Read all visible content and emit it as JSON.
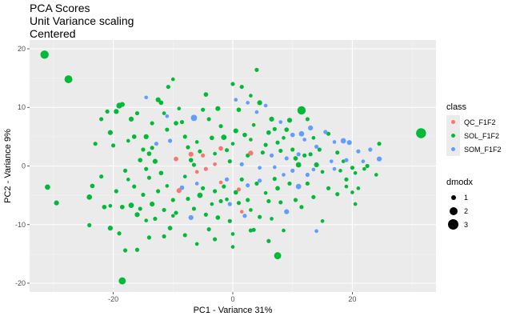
{
  "header": {
    "title": "PCA Scores",
    "subtitle1": "Unit Variance scaling",
    "subtitle2": "Centered"
  },
  "chart_data": {
    "type": "scatter",
    "title": "PCA Scores",
    "subtitle": "Unit Variance scaling\nCentered",
    "xlabel": "PC1 - Variance 31%",
    "ylabel": "PC2 - Variance 9%",
    "xlim": [
      -34,
      34
    ],
    "ylim": [
      -21.5,
      21.5
    ],
    "x_ticks": [
      -20,
      0,
      20
    ],
    "y_ticks": [
      -20,
      -10,
      0,
      10,
      20
    ],
    "x_tick_labels": [
      "-20",
      "0",
      "20"
    ],
    "y_tick_labels": [
      "-20",
      "-10",
      "0",
      "10",
      "20"
    ],
    "grid": true,
    "background": "#ebebeb",
    "legend_placement": "right",
    "legend_color": {
      "title": "class",
      "entries": [
        {
          "name": "QC_F1F2",
          "color": "#f8766d"
        },
        {
          "name": "SOL_F1F2",
          "color": "#00ba38"
        },
        {
          "name": "SOM_F1F2",
          "color": "#619cff"
        }
      ]
    },
    "legend_size": {
      "title": "dmodx",
      "entries": [
        {
          "label": "1",
          "value": 1
        },
        {
          "label": "2",
          "value": 2
        },
        {
          "label": "3",
          "value": 3
        }
      ]
    },
    "series": [
      {
        "name": "QC_F1F2",
        "color": "#f8766d",
        "points": [
          [
            -7.0,
            2.0,
            1.5
          ],
          [
            -9.5,
            1.2,
            1.4
          ],
          [
            -5.0,
            1.8,
            1.3
          ],
          [
            -2.0,
            3.0,
            1.4
          ],
          [
            3.0,
            2.2,
            1.5
          ],
          [
            1.0,
            -4.0,
            1.3
          ],
          [
            -6.0,
            -1.0,
            1.2
          ],
          [
            -4.5,
            -0.5,
            1.3
          ],
          [
            -3.0,
            0.3,
            1.2
          ],
          [
            -9.0,
            -4.2,
            1.5
          ],
          [
            -2.0,
            -2.8,
            1.2
          ],
          [
            1.5,
            -7.8,
            1.2
          ]
        ]
      },
      {
        "name": "SOM_F1F2",
        "color": "#619cff",
        "points": [
          [
            -14.5,
            11.7,
            1.2
          ],
          [
            -11,
            8.5,
            1.2
          ],
          [
            -10.5,
            4.3,
            1.3
          ],
          [
            -6.5,
            8.2,
            1.8
          ],
          [
            -12.8,
            3.8,
            1.3
          ],
          [
            0.5,
            11.3,
            1.2
          ],
          [
            2.5,
            10.8,
            1.2
          ],
          [
            4.0,
            9.2,
            1.2
          ],
          [
            5.5,
            10.3,
            1.2
          ],
          [
            8.0,
            7.5,
            1.2
          ],
          [
            10.0,
            5.3,
            1.4
          ],
          [
            11.5,
            5.5,
            1.6
          ],
          [
            13.0,
            6.5,
            1.5
          ],
          [
            15.5,
            5.8,
            1.3
          ],
          [
            17.0,
            4.1,
            1.2
          ],
          [
            18.5,
            4.3,
            1.6
          ],
          [
            21.0,
            2.5,
            1.3
          ],
          [
            23.0,
            2.8,
            1.3
          ],
          [
            24.5,
            1.2,
            1.5
          ],
          [
            12.0,
            4.5,
            1.2
          ],
          [
            14.0,
            3.3,
            1.3
          ],
          [
            19.0,
            1.0,
            1.3
          ],
          [
            11.0,
            2.0,
            1.3
          ],
          [
            6.5,
            1.8,
            1.3
          ],
          [
            9.0,
            1.3,
            1.3
          ],
          [
            16.5,
            0.8,
            1.2
          ],
          [
            21.8,
            0.8,
            1.2
          ],
          [
            1.5,
            0.3,
            1.3
          ],
          [
            4.5,
            -0.3,
            1.2
          ],
          [
            7.0,
            -0.2,
            1.2
          ],
          [
            10.0,
            -0.8,
            1.3
          ],
          [
            13.5,
            -0.6,
            1.2
          ],
          [
            17.0,
            -0.5,
            1.2
          ],
          [
            8.5,
            -1.5,
            1.2
          ],
          [
            12.5,
            -1.5,
            1.3
          ],
          [
            4.5,
            -2.5,
            1.3
          ],
          [
            11.0,
            -3.5,
            1.6
          ],
          [
            -8.5,
            -3.7,
            1.4
          ],
          [
            -6.0,
            -3.0,
            1.2
          ],
          [
            -1.0,
            -2.3,
            1.3
          ],
          [
            2.5,
            -3.3,
            1.3
          ],
          [
            -0.5,
            -6.5,
            1.3
          ],
          [
            -7.0,
            -8.8,
            1.5
          ],
          [
            2.0,
            -8.5,
            1.3
          ],
          [
            9.0,
            -7.8,
            1.5
          ],
          [
            14.0,
            -11.1,
            1.2
          ],
          [
            19.5,
            4.0,
            1.5
          ]
        ]
      },
      {
        "name": "SOL_F1F2",
        "color": "#00ba38",
        "points": [
          [
            -31.5,
            19.0,
            2.3
          ],
          [
            -27.5,
            14.8,
            2.2
          ],
          [
            -31.0,
            -3.6,
            1.6
          ],
          [
            -29.5,
            -6.3,
            1.5
          ],
          [
            31.5,
            5.6,
            2.7
          ],
          [
            11.5,
            9.5,
            2.3
          ],
          [
            -18.5,
            -19.6,
            2.0
          ],
          [
            7.5,
            -15.3,
            2.0
          ],
          [
            -24.0,
            -5.3,
            1.6
          ],
          [
            -23.5,
            -3.4,
            1.4
          ],
          [
            -23.0,
            3.8,
            1.3
          ],
          [
            -20.5,
            5.7,
            1.5
          ],
          [
            -20.0,
            3.5,
            1.3
          ],
          [
            -19.5,
            9.3,
            1.5
          ],
          [
            -19.0,
            10.3,
            1.7
          ],
          [
            -18.5,
            10.5,
            1.5
          ],
          [
            -17.0,
            8.0,
            1.5
          ],
          [
            -16.5,
            5.0,
            1.4
          ],
          [
            -16.0,
            9.0,
            1.3
          ],
          [
            -15.5,
            1.0,
            1.4
          ],
          [
            -15.0,
            2.8,
            1.3
          ],
          [
            -14.5,
            -0.5,
            1.3
          ],
          [
            -14.0,
            2.1,
            1.4
          ],
          [
            -13.5,
            3.1,
            1.3
          ],
          [
            -13.0,
            0.8,
            1.5
          ],
          [
            -12.5,
            11.3,
            1.5
          ],
          [
            -12.0,
            10.8,
            1.4
          ],
          [
            -11.5,
            9.0,
            1.2
          ],
          [
            -10.8,
            13.5,
            1.3
          ],
          [
            -10.0,
            14.8,
            1.2
          ],
          [
            -9.5,
            7.3,
            1.4
          ],
          [
            -9.0,
            9.8,
            1.2
          ],
          [
            -8.5,
            7.5,
            1.3
          ],
          [
            -8.0,
            5.0,
            1.3
          ],
          [
            -7.5,
            3.2,
            1.3
          ],
          [
            -7.0,
            1.0,
            1.4
          ],
          [
            -6.5,
            0.2,
            1.3
          ],
          [
            -6.0,
            4.1,
            1.2
          ],
          [
            -5.5,
            2.5,
            1.3
          ],
          [
            -5.0,
            9.6,
            1.3
          ],
          [
            -4.5,
            12.2,
            1.4
          ],
          [
            -4.0,
            8.0,
            1.3
          ],
          [
            -3.5,
            4.8,
            1.4
          ],
          [
            -3.0,
            2.1,
            1.2
          ],
          [
            -2.5,
            9.8,
            1.5
          ],
          [
            -2.0,
            6.8,
            1.3
          ],
          [
            -1.5,
            4.9,
            1.6
          ],
          [
            -1.0,
            2.7,
            1.3
          ],
          [
            -0.5,
            0.8,
            1.3
          ],
          [
            0.0,
            3.8,
            1.2
          ],
          [
            0.5,
            6.0,
            1.5
          ],
          [
            1.0,
            9.6,
            1.4
          ],
          [
            1.5,
            13.5,
            1.3
          ],
          [
            2.0,
            5.3,
            1.4
          ],
          [
            2.5,
            1.8,
            1.3
          ],
          [
            3.0,
            4.5,
            1.2
          ],
          [
            3.5,
            7.0,
            1.2
          ],
          [
            4.0,
            16.4,
            1.3
          ],
          [
            4.5,
            10.8,
            1.5
          ],
          [
            5.0,
            2.3,
            1.3
          ],
          [
            5.5,
            3.6,
            1.3
          ],
          [
            6.0,
            5.7,
            1.4
          ],
          [
            6.5,
            8.0,
            1.5
          ],
          [
            7.0,
            6.3,
            1.3
          ],
          [
            7.5,
            4.0,
            1.3
          ],
          [
            8.0,
            2.6,
            1.3
          ],
          [
            8.5,
            4.8,
            1.2
          ],
          [
            9.0,
            6.2,
            1.4
          ],
          [
            9.5,
            7.8,
            1.5
          ],
          [
            10.0,
            2.8,
            1.3
          ],
          [
            10.5,
            1.3,
            1.4
          ],
          [
            11.0,
            0.2,
            1.6
          ],
          [
            12.0,
            1.8,
            1.3
          ],
          [
            12.5,
            8.0,
            1.3
          ],
          [
            13.0,
            2.0,
            1.3
          ],
          [
            13.5,
            4.8,
            1.2
          ],
          [
            14.0,
            0.2,
            1.5
          ],
          [
            14.5,
            2.8,
            1.3
          ],
          [
            15.0,
            -1.0,
            1.2
          ],
          [
            16.0,
            5.5,
            1.3
          ],
          [
            17.5,
            2.3,
            1.3
          ],
          [
            18.0,
            -0.8,
            1.2
          ],
          [
            18.5,
            0.8,
            1.2
          ],
          [
            19.0,
            -2.3,
            1.3
          ],
          [
            20.0,
            -0.3,
            1.3
          ],
          [
            20.5,
            -1.2,
            1.2
          ],
          [
            21.0,
            -3.8,
            1.2
          ],
          [
            22.0,
            -0.5,
            1.2
          ],
          [
            22.5,
            0.0,
            1.3
          ],
          [
            24.0,
            -1.5,
            1.2
          ],
          [
            24.5,
            3.8,
            1.3
          ],
          [
            -22.0,
            -1.8,
            1.3
          ],
          [
            -21.5,
            -7.0,
            1.4
          ],
          [
            -20.5,
            -6.8,
            1.2
          ],
          [
            -19.5,
            -4.3,
            1.3
          ],
          [
            -18.5,
            -7.0,
            1.4
          ],
          [
            -18.0,
            -0.8,
            1.3
          ],
          [
            -17.5,
            -2.3,
            1.2
          ],
          [
            -17.0,
            -6.7,
            1.6
          ],
          [
            -16.5,
            -3.5,
            1.3
          ],
          [
            -16.0,
            -8.3,
            1.5
          ],
          [
            -15.5,
            -7.3,
            1.3
          ],
          [
            -15.0,
            -4.9,
            1.3
          ],
          [
            -14.5,
            -9.3,
            1.2
          ],
          [
            -14.0,
            -2.0,
            1.3
          ],
          [
            -13.5,
            -6.5,
            1.5
          ],
          [
            -13.0,
            -9.0,
            1.3
          ],
          [
            -12.5,
            -4.3,
            1.3
          ],
          [
            -12.0,
            -1.2,
            1.4
          ],
          [
            -11.5,
            -7.5,
            1.3
          ],
          [
            -11.0,
            -3.4,
            1.2
          ],
          [
            -10.5,
            -10.6,
            1.4
          ],
          [
            -10.0,
            -5.8,
            1.3
          ],
          [
            -9.5,
            -8.0,
            1.3
          ],
          [
            -8.0,
            -1.8,
            1.2
          ],
          [
            -7.5,
            -5.6,
            1.3
          ],
          [
            -6.5,
            -7.3,
            1.3
          ],
          [
            -5.5,
            -5.0,
            1.6
          ],
          [
            -5.0,
            -3.8,
            1.3
          ],
          [
            -4.5,
            -8.3,
            1.3
          ],
          [
            -4.0,
            -10.8,
            1.3
          ],
          [
            -3.5,
            -6.5,
            1.2
          ],
          [
            -3.0,
            -4.3,
            1.3
          ],
          [
            -2.5,
            -8.8,
            1.4
          ],
          [
            -2.0,
            -6.0,
            1.3
          ],
          [
            -1.5,
            -3.5,
            1.3
          ],
          [
            -1.0,
            -5.7,
            1.2
          ],
          [
            -0.5,
            -9.4,
            1.3
          ],
          [
            0.0,
            -11.6,
            1.2
          ],
          [
            0.5,
            -4.5,
            1.4
          ],
          [
            1.0,
            -6.3,
            1.3
          ],
          [
            1.5,
            -2.3,
            1.3
          ],
          [
            2.5,
            -5.8,
            1.3
          ],
          [
            3.0,
            -7.5,
            1.2
          ],
          [
            3.5,
            -10.9,
            1.3
          ],
          [
            4.0,
            -3.0,
            1.3
          ],
          [
            4.5,
            -8.7,
            1.3
          ],
          [
            5.5,
            -4.6,
            1.2
          ],
          [
            6.0,
            -6.0,
            1.3
          ],
          [
            6.5,
            -9.0,
            1.2
          ],
          [
            7.0,
            -2.2,
            1.3
          ],
          [
            7.5,
            -3.8,
            1.4
          ],
          [
            8.0,
            -6.2,
            1.3
          ],
          [
            8.5,
            -11.0,
            1.2
          ],
          [
            9.5,
            -3.0,
            1.3
          ],
          [
            10.5,
            -5.8,
            1.3
          ],
          [
            11.5,
            -7.0,
            1.3
          ],
          [
            12.5,
            -3.0,
            1.3
          ],
          [
            13.5,
            -5.3,
            1.3
          ],
          [
            15.0,
            -9.4,
            1.2
          ],
          [
            16.0,
            -3.8,
            1.3
          ],
          [
            17.5,
            -4.8,
            1.3
          ],
          [
            19.0,
            -3.5,
            1.2
          ],
          [
            20.0,
            -4.5,
            1.2
          ],
          [
            20.5,
            -6.5,
            1.2
          ],
          [
            -24.0,
            -10.1,
            1.3
          ],
          [
            -20.5,
            -10.6,
            1.5
          ],
          [
            -19.0,
            -11.5,
            1.3
          ],
          [
            -18.0,
            -14.4,
            1.3
          ],
          [
            -16.0,
            -14.3,
            1.3
          ],
          [
            -14.0,
            -12.2,
            1.3
          ],
          [
            -11.5,
            -12.0,
            1.3
          ],
          [
            -10.0,
            -8.5,
            1.2
          ],
          [
            -8.0,
            -11.8,
            1.3
          ],
          [
            -6.0,
            -13.3,
            1.2
          ],
          [
            -3.0,
            -12.5,
            1.3
          ],
          [
            0.0,
            -13.8,
            1.2
          ],
          [
            3.0,
            -11.0,
            1.3
          ],
          [
            6.0,
            -12.8,
            1.3
          ],
          [
            3.0,
            12.0,
            1.2
          ],
          [
            0.0,
            14.0,
            1.3
          ],
          [
            -13.5,
            7.3,
            1.3
          ],
          [
            -11.0,
            6.2,
            1.3
          ],
          [
            -14.5,
            5.0,
            1.5
          ],
          [
            -17.5,
            4.3,
            1.2
          ],
          [
            -22.0,
            8.0,
            1.3
          ],
          [
            -21.0,
            9.3,
            1.3
          ]
        ]
      }
    ]
  }
}
